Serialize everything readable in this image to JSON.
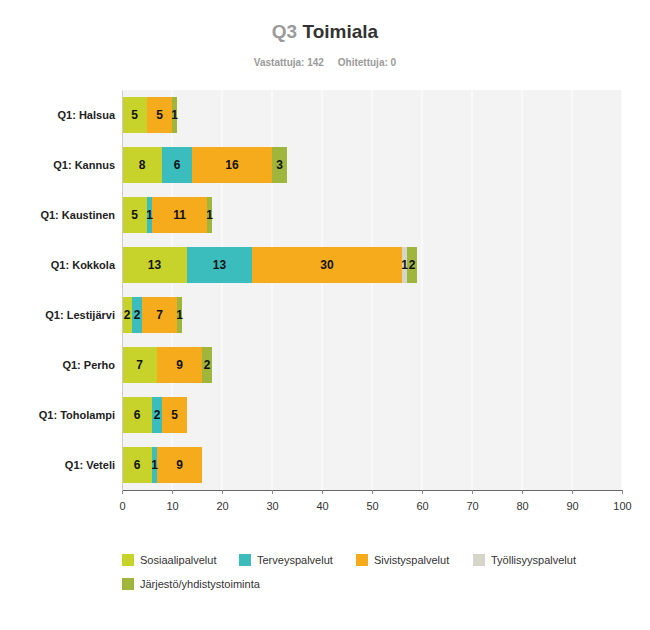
{
  "chart_data": {
    "type": "bar",
    "title": "Q3 Toimiala",
    "subtitle": "Vastattuja: 142     Ohitettuja: 0",
    "orientation": "horizontal",
    "stacked": true,
    "data_labels": true,
    "grid": true,
    "legend": "bottom",
    "categories": [
      "Q1: Halsua",
      "Q1: Kannus",
      "Q1: Kaustinen",
      "Q1: Kokkola",
      "Q1: Lestijärvi",
      "Q1: Perho",
      "Q1: Toholampi",
      "Q1: Veteli"
    ],
    "series": [
      {
        "name": "Sosiaalipalvelut",
        "color": "#c7d22b",
        "values": [
          5,
          8,
          5,
          13,
          2,
          7,
          6,
          6
        ]
      },
      {
        "name": "Terveyspalvelut",
        "color": "#3cbdbd",
        "values": [
          0,
          6,
          1,
          13,
          2,
          0,
          2,
          1
        ]
      },
      {
        "name": "Sivistyspalvelut",
        "color": "#f6ab1d",
        "values": [
          5,
          16,
          11,
          30,
          7,
          9,
          5,
          9
        ]
      },
      {
        "name": "Työllisyyspalvelut",
        "color": "#d5d5c8",
        "values": [
          0,
          0,
          0,
          1,
          0,
          0,
          0,
          0
        ]
      },
      {
        "name": "Järjestö/yhdistystoiminta",
        "color": "#9fb53b",
        "values": [
          1,
          3,
          1,
          2,
          1,
          2,
          0,
          0
        ]
      }
    ],
    "xlim": [
      0,
      100
    ],
    "xticks": [
      0,
      10,
      20,
      30,
      40,
      50,
      60,
      70,
      80,
      90,
      100
    ]
  }
}
